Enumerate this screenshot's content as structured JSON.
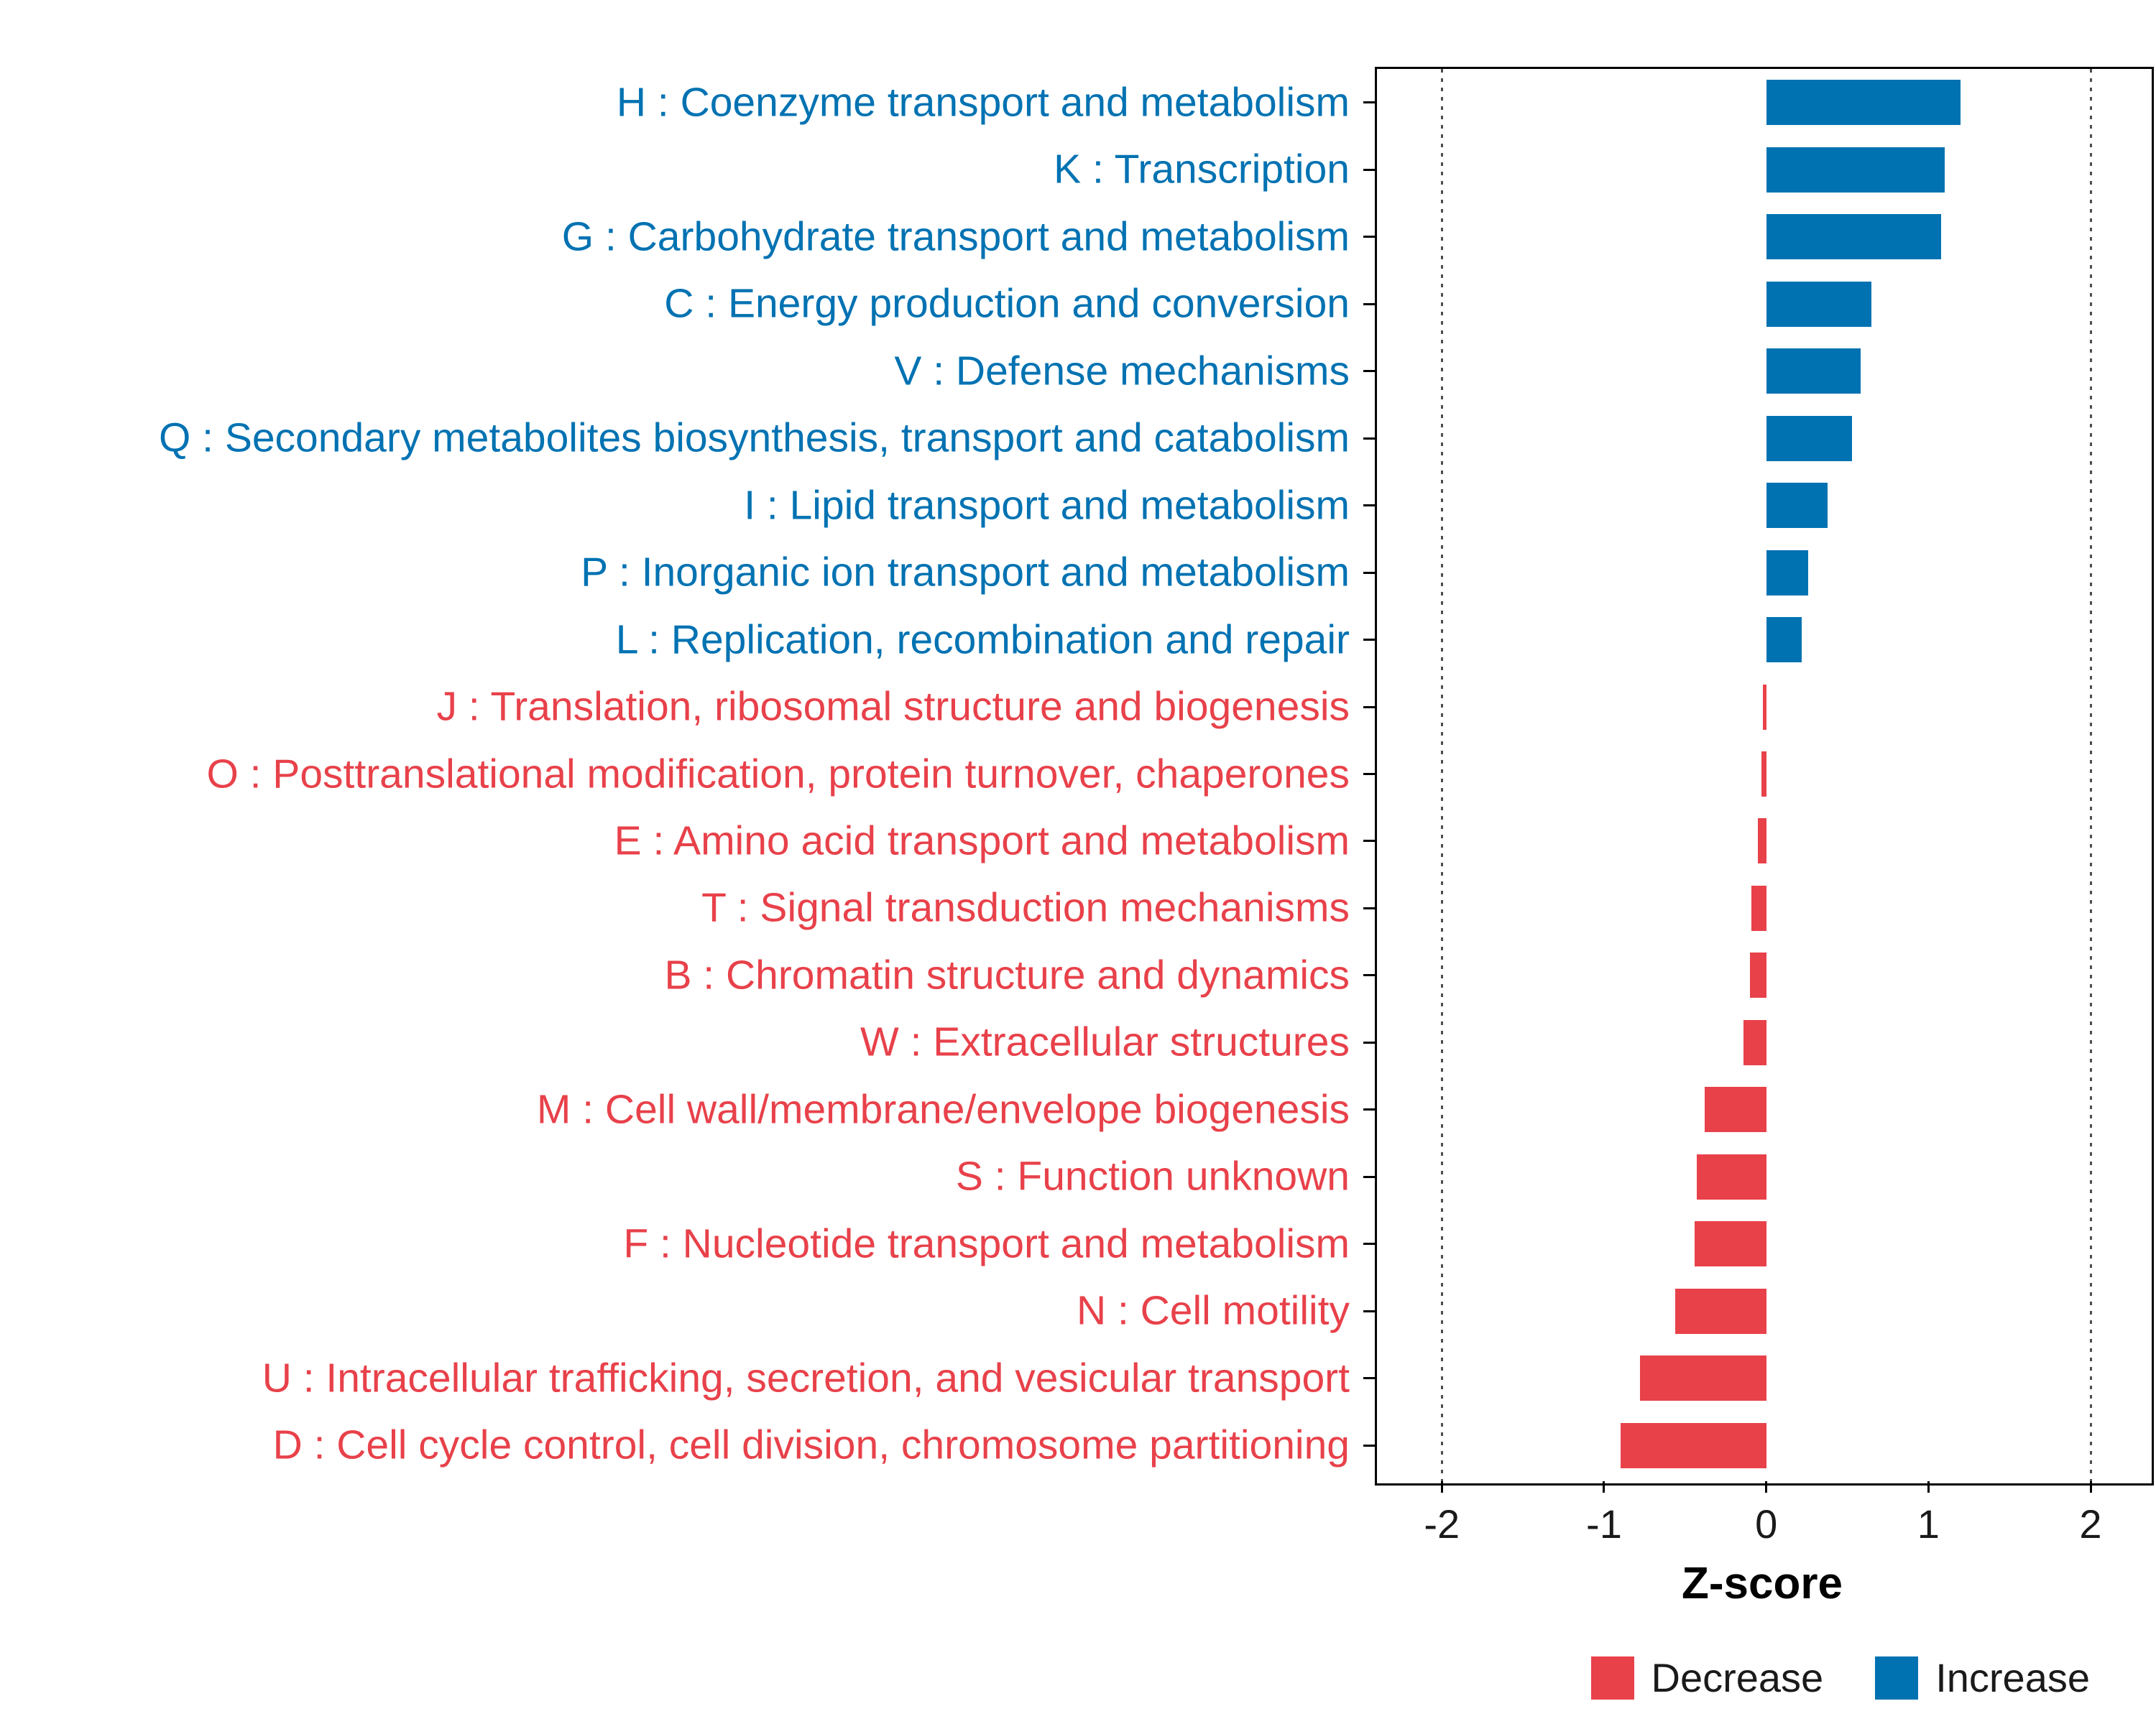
{
  "chart_data": {
    "type": "bar",
    "orientation": "horizontal",
    "title": "",
    "xlabel": "Z-score",
    "ylabel": "",
    "xlim": [
      -2.4,
      2.35
    ],
    "x_ticks": [
      -2,
      -1,
      0,
      1,
      2
    ],
    "reference_lines": [
      -2,
      2
    ],
    "grid": false,
    "legend_position": "bottom-right",
    "categories": [
      "H : Coenzyme transport and metabolism",
      "K : Transcription",
      "G : Carbohydrate transport and metabolism",
      "C : Energy production and conversion",
      "V : Defense mechanisms",
      "Q : Secondary metabolites biosynthesis, transport and catabolism",
      "I : Lipid transport and metabolism",
      "P : Inorganic ion transport and metabolism",
      "L : Replication, recombination and repair",
      "J : Translation, ribosomal structure and biogenesis",
      "O : Posttranslational modification, protein turnover, chaperones",
      "E : Amino acid transport and metabolism",
      "T : Signal transduction mechanisms",
      "B : Chromatin structure and dynamics",
      "W : Extracellular structures",
      "M : Cell wall/membrane/envelope biogenesis",
      "S : Function unknown",
      "F : Nucleotide transport and metabolism",
      "N : Cell motility",
      "U : Intracellular trafficking, secretion, and vesicular transport",
      "D : Cell cycle control, cell division, chromosome partitioning"
    ],
    "values": [
      1.2,
      1.1,
      1.08,
      0.65,
      0.58,
      0.53,
      0.38,
      0.26,
      0.22,
      -0.02,
      -0.03,
      -0.05,
      -0.09,
      -0.1,
      -0.14,
      -0.38,
      -0.43,
      -0.44,
      -0.56,
      -0.78,
      -0.9
    ],
    "groups": [
      "Increase",
      "Increase",
      "Increase",
      "Increase",
      "Increase",
      "Increase",
      "Increase",
      "Increase",
      "Increase",
      "Decrease",
      "Decrease",
      "Decrease",
      "Decrease",
      "Decrease",
      "Decrease",
      "Decrease",
      "Decrease",
      "Decrease",
      "Decrease",
      "Decrease",
      "Decrease"
    ],
    "colors": {
      "Increase": "#0072B2",
      "Decrease": "#E8414A",
      "reference_line": "#4D4D4D",
      "axis_text": "#1A1A1A",
      "panel_border": "#000000"
    },
    "legend": [
      {
        "label": "Decrease"
      },
      {
        "label": "Increase"
      }
    ]
  }
}
